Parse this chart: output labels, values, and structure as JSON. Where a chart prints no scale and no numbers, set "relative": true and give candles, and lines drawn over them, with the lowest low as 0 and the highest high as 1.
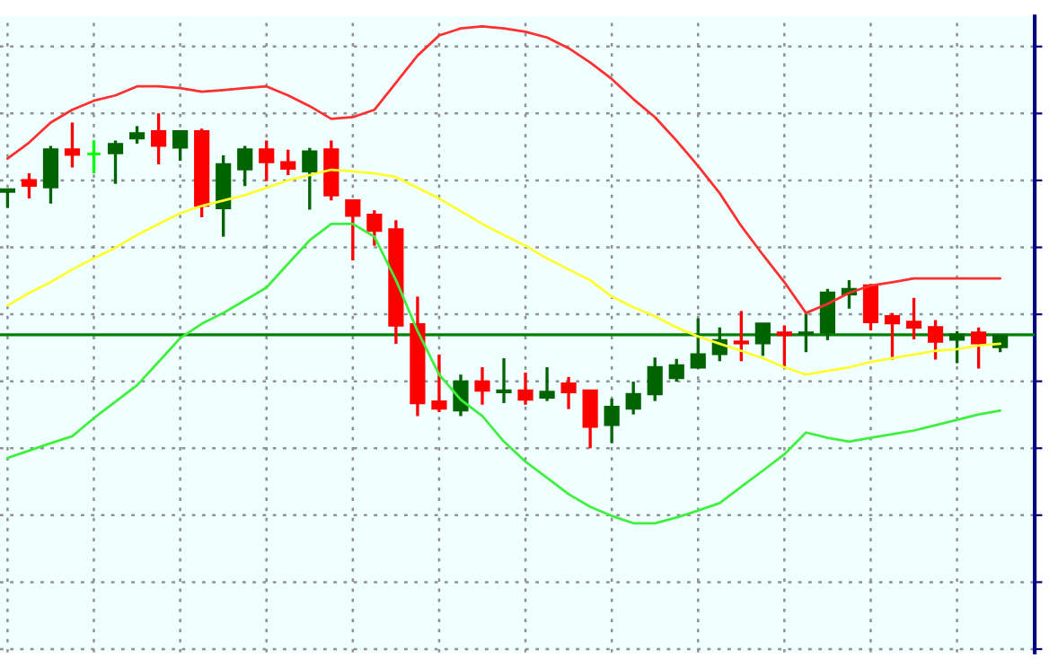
{
  "chart_data": {
    "type": "candlestick",
    "relative": true,
    "grid": true,
    "categories": [
      null,
      null,
      null,
      null,
      null,
      null,
      null,
      null,
      null,
      null,
      null,
      null,
      null,
      null,
      null,
      null,
      null,
      null,
      null,
      null,
      null,
      null,
      null,
      null,
      null,
      null,
      null,
      null,
      null,
      null,
      null,
      null,
      null,
      null,
      null,
      null,
      null,
      null,
      null,
      null,
      null,
      null,
      null,
      null,
      null,
      null,
      null
    ],
    "ohlc": [
      [
        0.767,
        0.773,
        0.718,
        0.773
      ],
      [
        0.8,
        0.821,
        0.746,
        0.785
      ],
      [
        0.78,
        0.903,
        0.731,
        0.892
      ],
      [
        0.892,
        0.973,
        0.839,
        0.877
      ],
      [
        0.879,
        0.92,
        0.821,
        0.879
      ],
      [
        0.882,
        0.919,
        0.79,
        0.908
      ],
      [
        0.926,
        0.962,
        0.91,
        0.94
      ],
      [
        0.946,
        1.0,
        0.848,
        0.904
      ],
      [
        0.899,
        0.946,
        0.859,
        0.946
      ],
      [
        0.946,
        0.955,
        0.69,
        0.725
      ],
      [
        0.718,
        0.875,
        0.632,
        0.848
      ],
      [
        0.834,
        0.903,
        0.783,
        0.892
      ],
      [
        0.892,
        0.919,
        0.798,
        0.855
      ],
      [
        0.854,
        0.892,
        0.816,
        0.836
      ],
      [
        0.828,
        0.897,
        0.713,
        0.886
      ],
      [
        0.892,
        0.919,
        0.74,
        0.756
      ],
      [
        0.74,
        0.74,
        0.561,
        0.695
      ],
      [
        0.697,
        0.711,
        0.605,
        0.65
      ],
      [
        0.653,
        0.681,
        0.312,
        0.367
      ],
      [
        0.37,
        0.453,
        0.096,
        0.135
      ],
      [
        0.139,
        0.28,
        0.108,
        0.119
      ],
      [
        0.114,
        0.22,
        0.096,
        0.199
      ],
      [
        0.199,
        0.242,
        0.13,
        0.173
      ],
      [
        0.168,
        0.269,
        0.135,
        0.172
      ],
      [
        0.172,
        0.226,
        0.13,
        0.146
      ],
      [
        0.152,
        0.242,
        0.141,
        0.168
      ],
      [
        0.193,
        0.213,
        0.117,
        0.168
      ],
      [
        0.172,
        0.172,
        0,
        0.065
      ],
      [
        0.07,
        0.148,
        0.015,
        0.123
      ],
      [
        0.119,
        0.199,
        0.101,
        0.161
      ],
      [
        0.162,
        0.271,
        0.141,
        0.242
      ],
      [
        0.21,
        0.267,
        0.199,
        0.247
      ],
      [
        0.242,
        0.388,
        0.238,
        0.28
      ],
      [
        0.282,
        0.361,
        0.26,
        0.322
      ],
      [
        0.318,
        0.41,
        0.26,
        0.314
      ],
      [
        0.314,
        0.372,
        0.276,
        0.372
      ],
      [
        0.345,
        0.367,
        0.244,
        0.339
      ],
      [
        0.343,
        0.404,
        0.287,
        0.345
      ],
      [
        0.346,
        0.476,
        0.323,
        0.464
      ],
      [
        0.46,
        0.502,
        0.417,
        0.475
      ],
      [
        0.486,
        0.491,
        0.352,
        0.377
      ],
      [
        0.394,
        0.404,
        0.265,
        0.374
      ],
      [
        0.377,
        0.449,
        0.325,
        0.361
      ],
      [
        0.361,
        0.383,
        0.265,
        0.319
      ],
      [
        0.325,
        0.35,
        0.254,
        0.339
      ],
      [
        0.345,
        0.361,
        0.238,
        0.314
      ],
      [
        0.303,
        0.336,
        0.287,
        0.336
      ]
    ],
    "colors": [
      "#006400",
      "#ff0000",
      "#006400",
      "#ff0000",
      "#00ff00",
      "#006400",
      "#006400",
      "#ff0000",
      "#006400",
      "#ff0000",
      "#006400",
      "#006400",
      "#ff0000",
      "#ff0000",
      "#006400",
      "#ff0000",
      "#ff0000",
      "#ff0000",
      "#ff0000",
      "#ff0000",
      "#ff0000",
      "#006400",
      "#ff0000",
      "#006400",
      "#ff0000",
      "#006400",
      "#ff0000",
      "#ff0000",
      "#006400",
      "#006400",
      "#006400",
      "#006400",
      "#006400",
      "#006400",
      "#ff0000",
      "#006400",
      "#ff0000",
      "#006400",
      "#006400",
      "#006400",
      "#ff0000",
      "#ff0000",
      "#ff0000",
      "#ff0000",
      "#006400",
      "#ff0000",
      "#006400"
    ],
    "series": [
      {
        "type": "line",
        "color": "#ff3030",
        "values": [
          0.865,
          0.913,
          0.973,
          1.011,
          1.038,
          1.054,
          1.081,
          1.081,
          1.076,
          1.065,
          1.07,
          1.076,
          1.081,
          1.054,
          1.022,
          0.984,
          0.989,
          1.011,
          1.092,
          1.173,
          1.233,
          1.254,
          1.26,
          1.254,
          1.244,
          1.227,
          1.195,
          1.152,
          1.103,
          1.043,
          0.989,
          0.919,
          0.843,
          0.762,
          0.664,
          0.578,
          0.496,
          0.404,
          0.431,
          0.464,
          0.486,
          0.496,
          0.507,
          0.507,
          0.507,
          0.507,
          0.507
        ]
      },
      {
        "type": "line",
        "color": "#ffff30",
        "values": [
          0.426,
          0.464,
          0.496,
          0.534,
          0.567,
          0.599,
          0.637,
          0.67,
          0.702,
          0.724,
          0.74,
          0.756,
          0.778,
          0.8,
          0.816,
          0.832,
          0.827,
          0.821,
          0.81,
          0.778,
          0.746,
          0.708,
          0.67,
          0.637,
          0.605,
          0.567,
          0.534,
          0.502,
          0.453,
          0.421,
          0.394,
          0.361,
          0.334,
          0.312,
          0.291,
          0.269,
          0.242,
          0.22,
          0.231,
          0.242,
          0.258,
          0.269,
          0.28,
          0.291,
          0.296,
          0.307,
          0.312
        ]
      },
      {
        "type": "line",
        "color": "#40f040",
        "values": [
          -0.029,
          -0.007,
          0.015,
          0.036,
          0.09,
          0.139,
          0.188,
          0.258,
          0.329,
          0.372,
          0.404,
          0.442,
          0.48,
          0.551,
          0.621,
          0.67,
          0.67,
          0.632,
          0.502,
          0.35,
          0.22,
          0.145,
          0.096,
          0.02,
          -0.04,
          -0.088,
          -0.137,
          -0.175,
          -0.202,
          -0.224,
          -0.224,
          -0.207,
          -0.186,
          -0.164,
          -0.115,
          -0.067,
          -0.018,
          0.047,
          0.031,
          0.02,
          0.031,
          0.042,
          0.053,
          0.069,
          0.085,
          0.101,
          0.112
        ]
      }
    ],
    "ref_lines": [
      {
        "axis": "y",
        "value": 0.339,
        "color": "#008000"
      }
    ]
  }
}
